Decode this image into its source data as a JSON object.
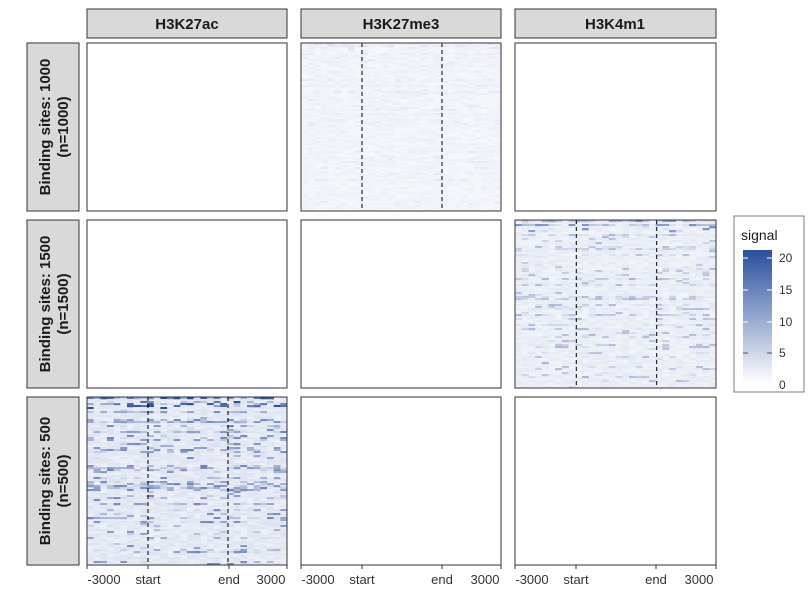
{
  "chart_data": {
    "type": "heatmap",
    "columns": [
      "H3K27ac",
      "H3K27me3",
      "H3K4m1"
    ],
    "rows": [
      {
        "label": "Binding sites: 1000",
        "n_label": "(n=1000)"
      },
      {
        "label": "Binding sites: 1500",
        "n_label": "(n=1500)"
      },
      {
        "label": "Binding sites: 500",
        "n_label": "(n=500)"
      }
    ],
    "x_ticks": [
      "-3000",
      "start",
      "end",
      "3000"
    ],
    "x_range": [
      -3000,
      3000
    ],
    "reference_lines": [
      "start",
      "end"
    ],
    "active_panels": [
      {
        "row": 0,
        "col": 1,
        "mean_signal": 1.0,
        "max_signal": 2
      },
      {
        "row": 1,
        "col": 2,
        "mean_signal": 1.5,
        "max_signal": 12
      },
      {
        "row": 2,
        "col": 0,
        "mean_signal": 2.0,
        "max_signal": 22
      }
    ],
    "legend": {
      "title": "signal",
      "ticks": [
        "20",
        "15",
        "10",
        "5",
        "0"
      ],
      "range": [
        0,
        22
      ],
      "color_low": "#ffffff",
      "color_high": "#2a4f9e"
    }
  },
  "colors": {
    "strip_fill": "#d9d9d9",
    "panel_border": "#333333",
    "dashed_line": "#000000"
  }
}
